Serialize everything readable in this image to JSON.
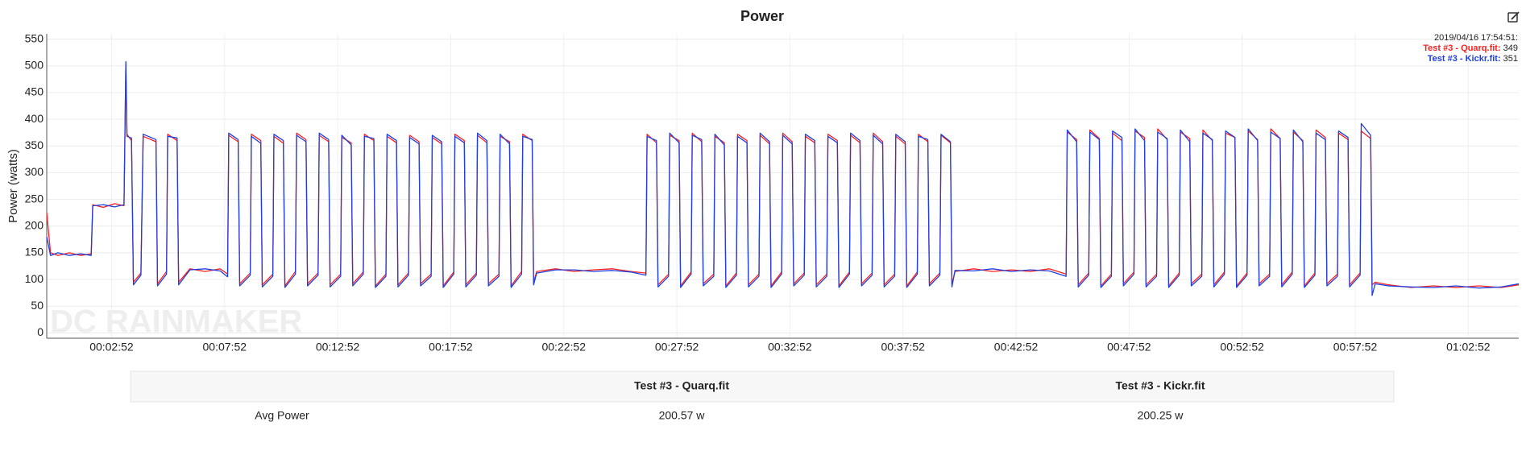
{
  "chart_data": {
    "type": "line",
    "title": "Power",
    "y_label": "Power (watts)",
    "watermark": "DC RAINMAKER",
    "grid": true,
    "xlim": [
      0,
      3906
    ],
    "ylim": [
      -10,
      560
    ],
    "yticks": [
      0,
      50,
      100,
      150,
      200,
      250,
      300,
      350,
      400,
      450,
      500,
      550
    ],
    "xticks": [
      {
        "value": 172,
        "label": "00:02:52"
      },
      {
        "value": 472,
        "label": "00:07:52"
      },
      {
        "value": 772,
        "label": "00:12:52"
      },
      {
        "value": 1072,
        "label": "00:17:52"
      },
      {
        "value": 1372,
        "label": "00:22:52"
      },
      {
        "value": 1672,
        "label": "00:27:52"
      },
      {
        "value": 1972,
        "label": "00:32:52"
      },
      {
        "value": 2272,
        "label": "00:37:52"
      },
      {
        "value": 2572,
        "label": "00:42:52"
      },
      {
        "value": 2872,
        "label": "00:47:52"
      },
      {
        "value": 3172,
        "label": "00:52:52"
      },
      {
        "value": 3472,
        "label": "00:57:52"
      },
      {
        "value": 3772,
        "label": "01:02:52"
      }
    ],
    "x": [
      0,
      10,
      30,
      60,
      90,
      118,
      122,
      150,
      180,
      205,
      210,
      213,
      225,
      230,
      250,
      256,
      290,
      294,
      318,
      321,
      346,
      350,
      380,
      420,
      460,
      480,
      483,
      508,
      512,
      540,
      543,
      568,
      572,
      600,
      603,
      628,
      632,
      660,
      663,
      688,
      692,
      720,
      723,
      748,
      752,
      780,
      783,
      808,
      812,
      840,
      843,
      868,
      872,
      900,
      903,
      928,
      932,
      960,
      963,
      988,
      992,
      1020,
      1023,
      1048,
      1052,
      1080,
      1083,
      1108,
      1112,
      1140,
      1143,
      1168,
      1172,
      1200,
      1203,
      1228,
      1232,
      1260,
      1263,
      1288,
      1292,
      1300,
      1350,
      1400,
      1450,
      1500,
      1550,
      1590,
      1593,
      1618,
      1622,
      1650,
      1653,
      1678,
      1682,
      1710,
      1713,
      1738,
      1742,
      1770,
      1773,
      1798,
      1802,
      1830,
      1833,
      1858,
      1862,
      1890,
      1893,
      1918,
      1922,
      1950,
      1953,
      1978,
      1982,
      2010,
      2013,
      2038,
      2042,
      2070,
      2073,
      2098,
      2102,
      2130,
      2133,
      2158,
      2162,
      2190,
      2193,
      2218,
      2222,
      2250,
      2253,
      2278,
      2282,
      2310,
      2313,
      2338,
      2342,
      2370,
      2373,
      2398,
      2402,
      2410,
      2460,
      2510,
      2560,
      2610,
      2660,
      2705,
      2708,
      2733,
      2737,
      2765,
      2768,
      2793,
      2797,
      2825,
      2828,
      2853,
      2857,
      2885,
      2888,
      2913,
      2917,
      2945,
      2948,
      2973,
      2977,
      3005,
      3008,
      3033,
      3037,
      3065,
      3068,
      3093,
      3097,
      3125,
      3128,
      3153,
      3157,
      3185,
      3188,
      3213,
      3217,
      3245,
      3248,
      3273,
      3277,
      3305,
      3308,
      3333,
      3337,
      3365,
      3368,
      3393,
      3397,
      3425,
      3428,
      3453,
      3457,
      3485,
      3488,
      3513,
      3517,
      3525,
      3560,
      3620,
      3680,
      3740,
      3800,
      3860,
      3906
    ],
    "series": [
      {
        "name": "Test #3 - Quarq.fit",
        "color": "#ff2020",
        "values": [
          225,
          150,
          145,
          150,
          145,
          148,
          240,
          235,
          242,
          238,
          505,
          372,
          360,
          95,
          112,
          368,
          358,
          92,
          115,
          372,
          360,
          95,
          120,
          115,
          120,
          110,
          370,
          358,
          92,
          112,
          372,
          360,
          90,
          110,
          368,
          355,
          88,
          115,
          374,
          362,
          92,
          112,
          370,
          358,
          90,
          110,
          366,
          356,
          92,
          114,
          372,
          360,
          88,
          110,
          368,
          356,
          90,
          112,
          370,
          358,
          92,
          110,
          366,
          354,
          88,
          114,
          372,
          360,
          90,
          112,
          370,
          356,
          92,
          110,
          368,
          358,
          88,
          115,
          372,
          360,
          95,
          115,
          120,
          115,
          118,
          120,
          115,
          112,
          372,
          356,
          90,
          110,
          370,
          360,
          88,
          114,
          374,
          358,
          92,
          110,
          368,
          356,
          88,
          112,
          372,
          360,
          90,
          110,
          370,
          354,
          88,
          114,
          374,
          358,
          92,
          112,
          368,
          356,
          90,
          110,
          372,
          360,
          88,
          114,
          370,
          356,
          92,
          112,
          374,
          358,
          90,
          110,
          368,
          354,
          88,
          114,
          372,
          358,
          92,
          112,
          370,
          356,
          90,
          115,
          120,
          115,
          118,
          115,
          120,
          110,
          376,
          362,
          90,
          112,
          380,
          364,
          88,
          110,
          374,
          360,
          92,
          114,
          378,
          366,
          90,
          110,
          382,
          362,
          88,
          112,
          376,
          364,
          92,
          110,
          380,
          360,
          90,
          114,
          374,
          366,
          88,
          112,
          378,
          362,
          92,
          110,
          382,
          364,
          90,
          114,
          376,
          360,
          88,
          112,
          380,
          366,
          92,
          110,
          374,
          362,
          90,
          112,
          378,
          364,
          90,
          95,
          90,
          85,
          88,
          85,
          88,
          85,
          90
        ]
      },
      {
        "name": "Test #3 - Kickr.fit",
        "color": "#1f3fe0",
        "values": [
          180,
          145,
          150,
          145,
          148,
          145,
          238,
          240,
          236,
          240,
          508,
          368,
          365,
          90,
          108,
          372,
          362,
          88,
          110,
          368,
          365,
          90,
          118,
          120,
          116,
          105,
          374,
          362,
          88,
          108,
          368,
          355,
          86,
          106,
          372,
          360,
          85,
          110,
          370,
          358,
          88,
          108,
          374,
          362,
          86,
          106,
          370,
          352,
          88,
          110,
          368,
          364,
          85,
          106,
          372,
          360,
          86,
          108,
          366,
          354,
          88,
          106,
          370,
          358,
          85,
          110,
          368,
          356,
          86,
          108,
          374,
          360,
          88,
          106,
          372,
          354,
          85,
          110,
          368,
          362,
          90,
          112,
          118,
          118,
          115,
          117,
          114,
          108,
          368,
          360,
          86,
          106,
          374,
          356,
          85,
          110,
          370,
          362,
          88,
          106,
          372,
          352,
          85,
          108,
          368,
          356,
          86,
          106,
          374,
          358,
          85,
          110,
          370,
          354,
          88,
          108,
          372,
          360,
          86,
          106,
          368,
          356,
          85,
          110,
          374,
          360,
          88,
          108,
          370,
          354,
          86,
          106,
          372,
          358,
          85,
          110,
          368,
          362,
          88,
          108,
          372,
          358,
          86,
          117,
          116,
          120,
          115,
          118,
          116,
          106,
          380,
          358,
          86,
          108,
          376,
          362,
          85,
          106,
          378,
          366,
          88,
          110,
          382,
          360,
          86,
          106,
          376,
          364,
          85,
          108,
          380,
          358,
          88,
          106,
          374,
          362,
          86,
          110,
          378,
          366,
          85,
          108,
          382,
          360,
          88,
          106,
          376,
          364,
          86,
          110,
          380,
          358,
          85,
          108,
          374,
          362,
          88,
          106,
          378,
          366,
          86,
          108,
          392,
          370,
          70,
          92,
          88,
          86,
          85,
          88,
          84,
          86,
          92
        ]
      }
    ],
    "tooltip": {
      "time": "2019/04/16 17:54:51:",
      "items": [
        {
          "label": "Test #3 - Quarq.fit:",
          "value": 349
        },
        {
          "label": "Test #3 - Kickr.fit:",
          "value": 351
        }
      ]
    }
  },
  "table": {
    "row_label": "Avg Power",
    "cells": [
      "200.57 w",
      "200.25 w"
    ]
  }
}
